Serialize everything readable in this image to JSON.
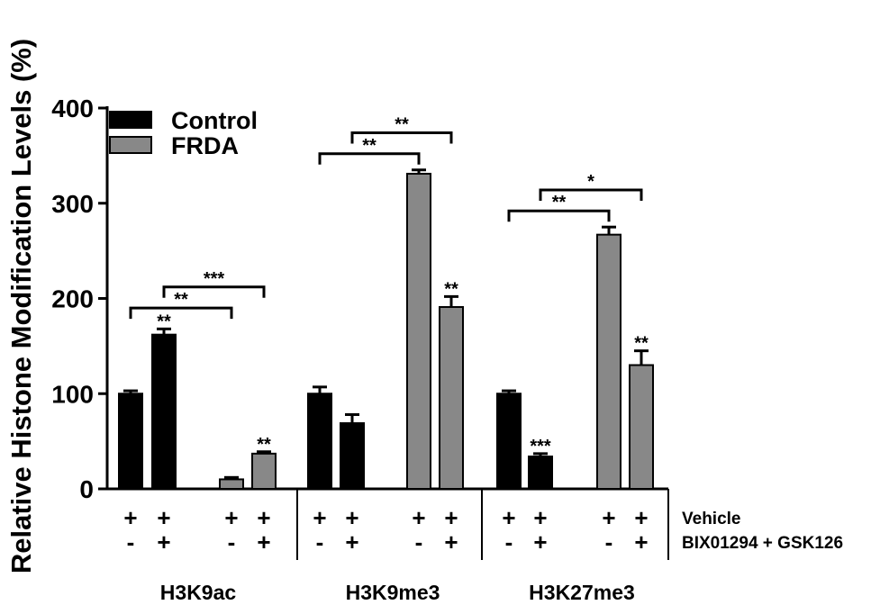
{
  "chart_data": {
    "type": "bar",
    "ylabel": "Relative Histone Modification Levels (%)",
    "ylim": [
      0,
      400
    ],
    "yticks": [
      0,
      100,
      200,
      300,
      400
    ],
    "grid": false,
    "legend_position": "top-left",
    "series": [
      {
        "name": "Control",
        "color": "#000000"
      },
      {
        "name": "FRDA",
        "color": "#888888"
      }
    ],
    "groups": [
      {
        "label": "H3K9ac",
        "bars": [
          {
            "series": "Control",
            "value": 100,
            "error": 3,
            "vehicle": "+",
            "bix": "-",
            "sig": ""
          },
          {
            "series": "Control",
            "value": 162,
            "error": 6,
            "vehicle": "+",
            "bix": "+",
            "sig": "**"
          },
          {
            "series": "FRDA",
            "value": 10,
            "error": 2,
            "vehicle": "+",
            "bix": "-",
            "sig": ""
          },
          {
            "series": "FRDA",
            "value": 37,
            "error": 2,
            "vehicle": "+",
            "bix": "+",
            "sig": "**"
          }
        ],
        "brackets": [
          {
            "from": 0,
            "to": 2,
            "label": "**",
            "y": 190
          },
          {
            "from": 1,
            "to": 3,
            "label": "***",
            "y": 212
          }
        ]
      },
      {
        "label": "H3K9me3",
        "bars": [
          {
            "series": "Control",
            "value": 100,
            "error": 7,
            "vehicle": "+",
            "bix": "-",
            "sig": ""
          },
          {
            "series": "Control",
            "value": 69,
            "error": 9,
            "vehicle": "+",
            "bix": "+",
            "sig": ""
          },
          {
            "series": "FRDA",
            "value": 331,
            "error": 4,
            "vehicle": "+",
            "bix": "-",
            "sig": ""
          },
          {
            "series": "FRDA",
            "value": 191,
            "error": 11,
            "vehicle": "+",
            "bix": "+",
            "sig": "**"
          }
        ],
        "brackets": [
          {
            "from": 0,
            "to": 2,
            "label": "**",
            "y": 352
          },
          {
            "from": 1,
            "to": 3,
            "label": "**",
            "y": 374
          }
        ]
      },
      {
        "label": "H3K27me3",
        "bars": [
          {
            "series": "Control",
            "value": 100,
            "error": 3,
            "vehicle": "+",
            "bix": "-",
            "sig": ""
          },
          {
            "series": "Control",
            "value": 34,
            "error": 3,
            "vehicle": "+",
            "bix": "+",
            "sig": "***"
          },
          {
            "series": "FRDA",
            "value": 267,
            "error": 8,
            "vehicle": "+",
            "bix": "-",
            "sig": ""
          },
          {
            "series": "FRDA",
            "value": 130,
            "error": 15,
            "vehicle": "+",
            "bix": "+",
            "sig": "**"
          }
        ],
        "brackets": [
          {
            "from": 0,
            "to": 2,
            "label": "**",
            "y": 292
          },
          {
            "from": 1,
            "to": 3,
            "label": "*",
            "y": 314
          }
        ]
      }
    ],
    "row_labels": [
      "Vehicle",
      "BIX01294 + GSK126"
    ]
  }
}
